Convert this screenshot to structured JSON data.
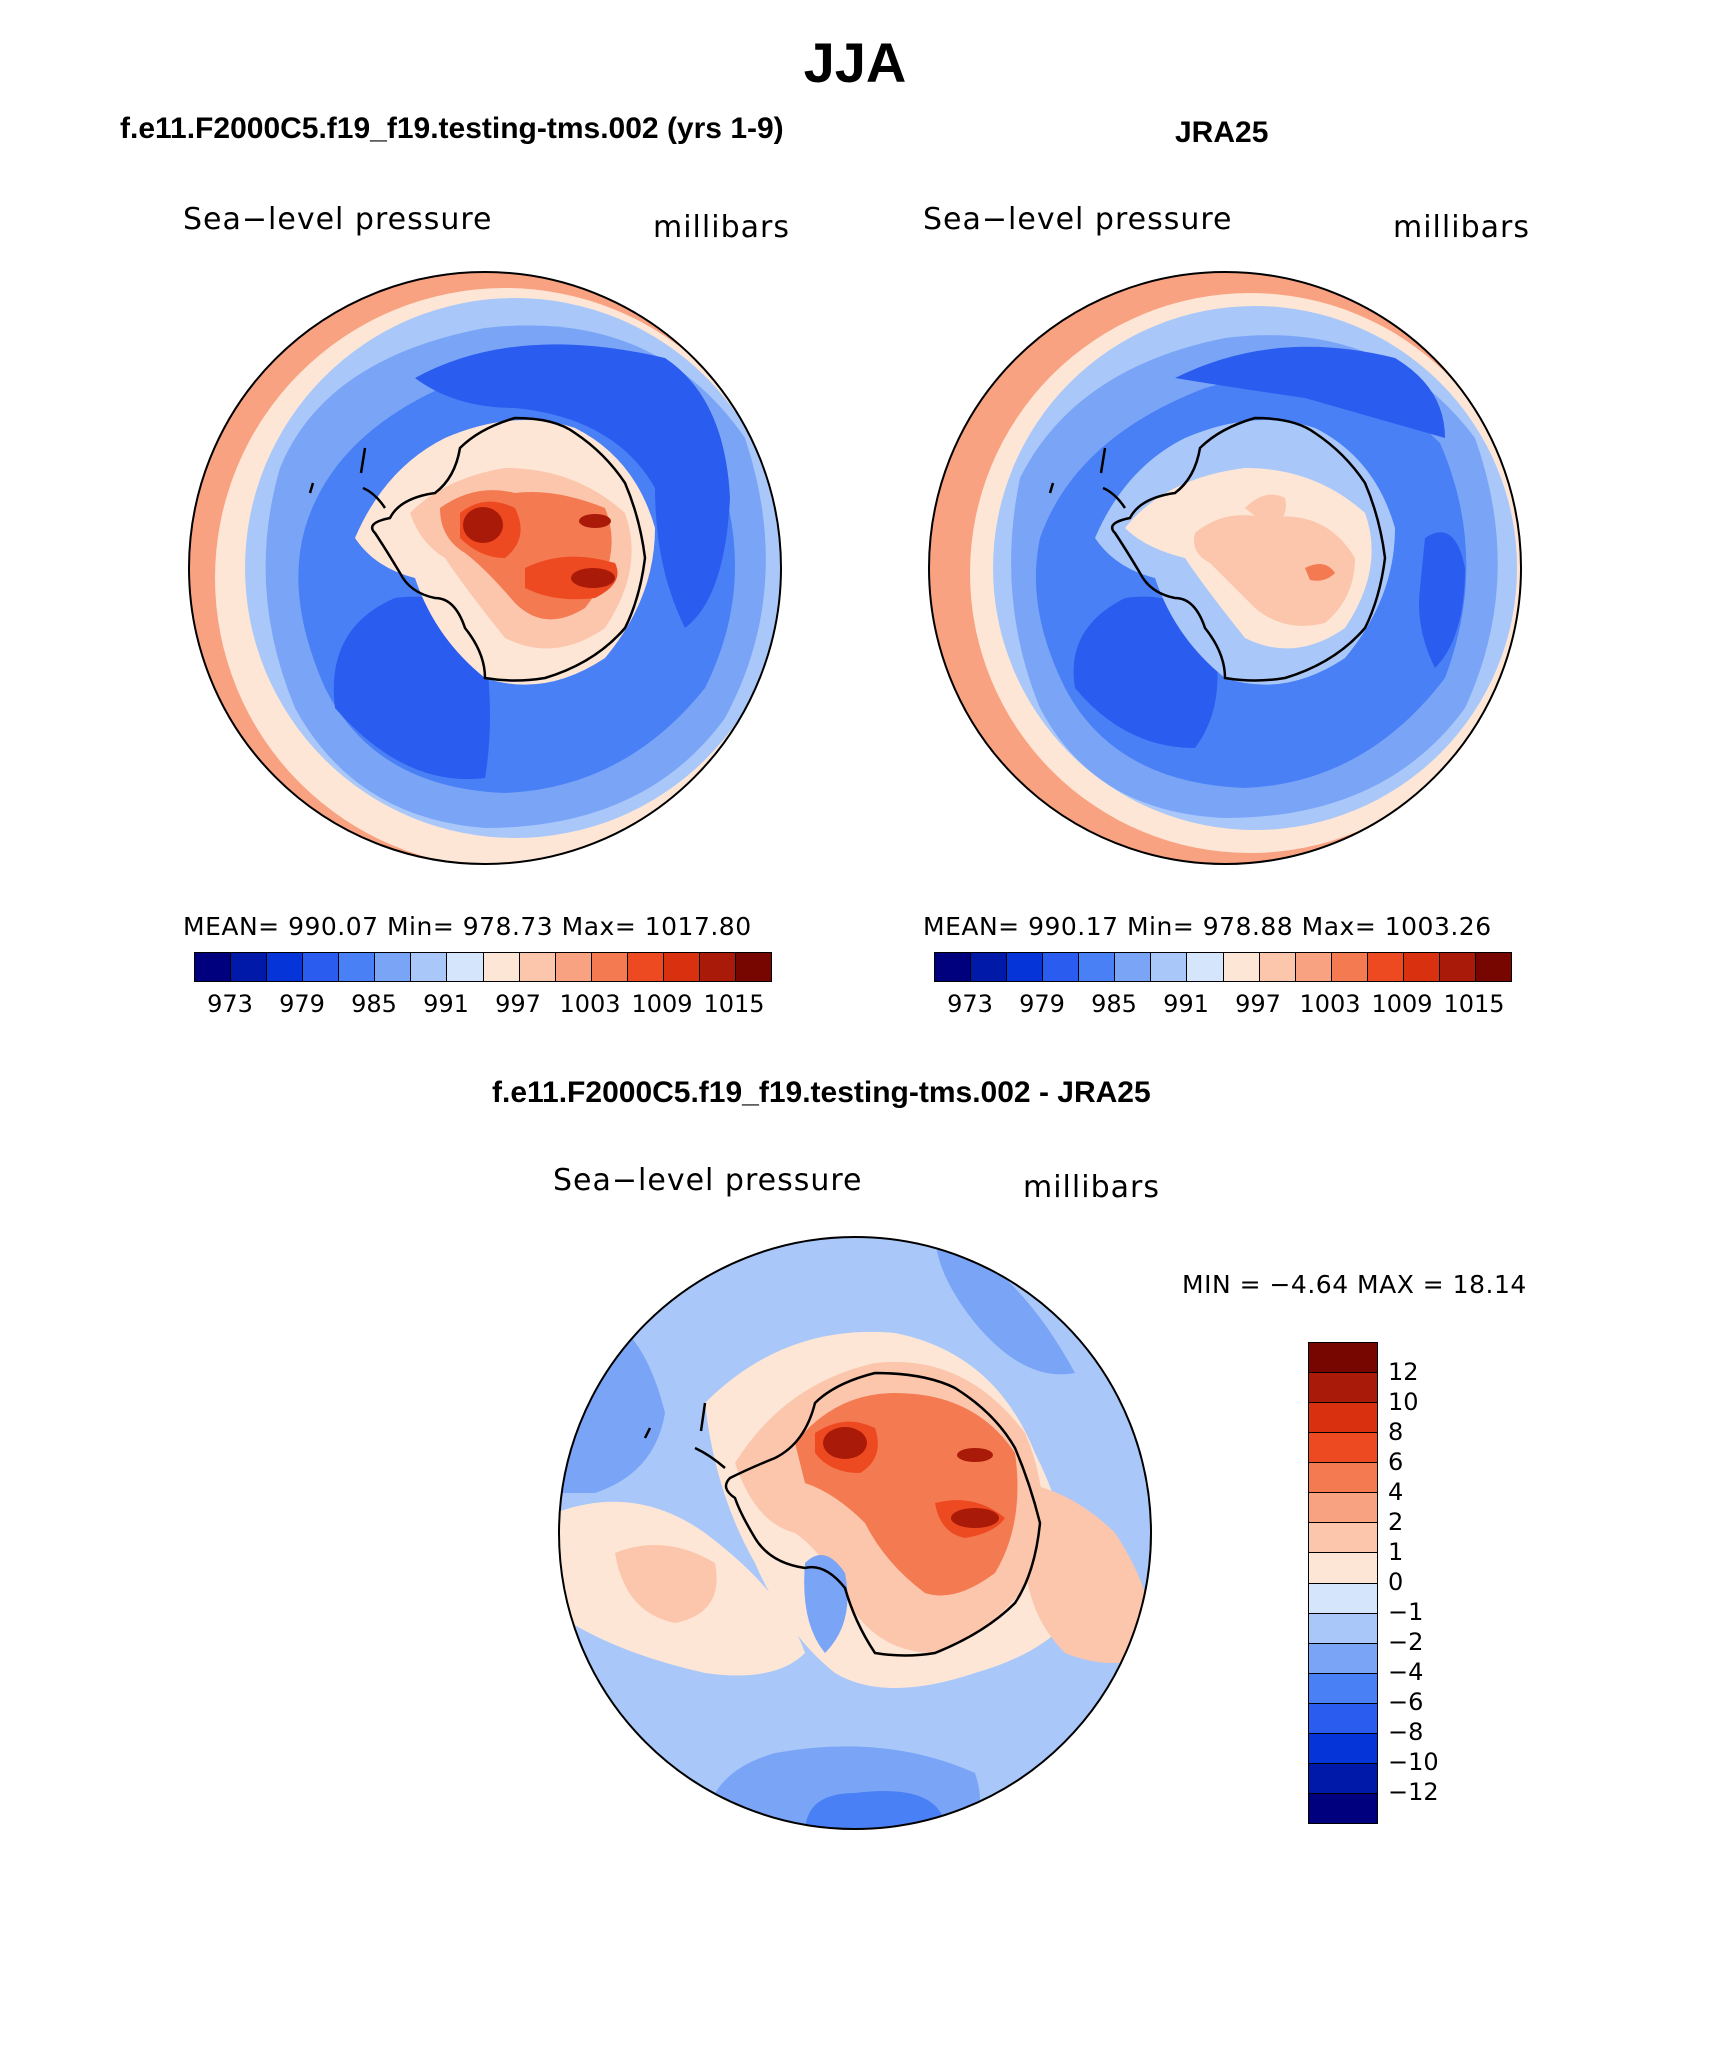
{
  "figure": {
    "title": "JJA",
    "season": "JJA"
  },
  "panels": [
    {
      "id": "model",
      "title": "f.e11.F2000C5.f19_f19.testing-tms.002 (yrs 1-9)",
      "variable": "Sea−level pressure",
      "units": "millibars",
      "stats_text": "MEAN=  990.07    Min=  978.73    Max=  1017.80",
      "mean": 990.07,
      "min": 978.73,
      "max": 1017.8
    },
    {
      "id": "obs",
      "title": "JRA25",
      "variable": "Sea−level pressure",
      "units": "millibars",
      "stats_text": "MEAN=  990.17    Min=  978.88    Max=  1003.26",
      "mean": 990.17,
      "min": 978.88,
      "max": 1003.26
    },
    {
      "id": "diff",
      "title": "f.e11.F2000C5.f19_f19.testing-tms.002 - JRA25",
      "variable": "Sea−level pressure",
      "units": "millibars",
      "stats_text": "MIN =    −4.64  MAX =    18.14",
      "min": -4.64,
      "max": 18.14
    }
  ],
  "abs_colorbar": {
    "labels": [
      "973",
      "979",
      "985",
      "991",
      "997",
      "1003",
      "1009",
      "1015"
    ],
    "colors": [
      "#00007f",
      "#0019a8",
      "#0535d9",
      "#2a5cf0",
      "#4a80f5",
      "#7aa5f7",
      "#a9c8f9",
      "#d5e5fb",
      "#fde6d6",
      "#fbc6ac",
      "#f9a282",
      "#f47a52",
      "#ee4a21",
      "#d9300f",
      "#aa1a08",
      "#770500"
    ]
  },
  "diff_colorbar": {
    "labels": [
      "12",
      "10",
      "8",
      "6",
      "4",
      "2",
      "1",
      "0",
      "−1",
      "−2",
      "−4",
      "−6",
      "−8",
      "−10",
      "−12"
    ],
    "colors": [
      "#770500",
      "#aa1a08",
      "#d9300f",
      "#ee4a21",
      "#f47a52",
      "#f9a282",
      "#fbc6ac",
      "#fde6d6",
      "#d5e5fb",
      "#a9c8f9",
      "#7aa5f7",
      "#4a80f5",
      "#2a5cf0",
      "#0535d9",
      "#0019a8",
      "#00007f"
    ]
  },
  "map_palette": {
    "ring_warm": "#f9a282",
    "ring_light": "#fde6d6",
    "ocean_lightblue": "#a9c8f9",
    "ocean_mid": "#7aa5f7",
    "ocean_blue": "#4a80f5",
    "ocean_deep": "#2a5cf0",
    "land_light": "#fde6d6",
    "land_mid": "#fbc6ac",
    "land_warm": "#f47a52",
    "land_hot": "#ee4a21",
    "land_peak": "#aa1a08",
    "coast": "#000000"
  }
}
